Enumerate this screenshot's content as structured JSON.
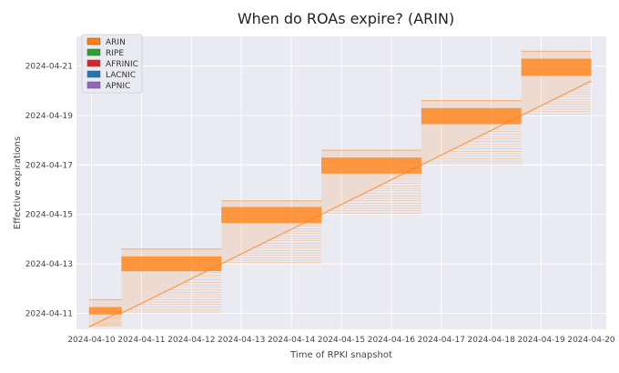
{
  "chart_data": {
    "type": "area",
    "title": "When do ROAs expire? (ARIN)",
    "xlabel": "Time of RPKI snapshot",
    "ylabel": "Effective expirations",
    "x_ticks": [
      "2024-04-10",
      "2024-04-11",
      "2024-04-12",
      "2024-04-13",
      "2024-04-14",
      "2024-04-15",
      "2024-04-16",
      "2024-04-17",
      "2024-04-18",
      "2024-04-19",
      "2024-04-20"
    ],
    "y_ticks": [
      "2024-04-11",
      "2024-04-13",
      "2024-04-15",
      "2024-04-17",
      "2024-04-19",
      "2024-04-21"
    ],
    "xlim": [
      -0.3,
      10.3
    ],
    "ylim": [
      10.35,
      22.2
    ],
    "grid": true,
    "legend_position": "top-left",
    "legend": [
      {
        "name": "ARIN",
        "color": "#ff7f0e"
      },
      {
        "name": "RIPE",
        "color": "#2ca02c"
      },
      {
        "name": "AFRINIC",
        "color": "#d62728"
      },
      {
        "name": "LACNIC",
        "color": "#1f77b4"
      },
      {
        "name": "APNIC",
        "color": "#9467bd"
      }
    ],
    "series": [
      {
        "name": "ARIN",
        "steps": [
          {
            "x_start": -0.05,
            "x_end": 0.6,
            "y_min": 10.45,
            "y_max": 11.55,
            "band_min": 10.95,
            "band_max": 11.25
          },
          {
            "x_start": 0.6,
            "x_end": 2.6,
            "y_min": 11.0,
            "y_max": 13.6,
            "band_min": 12.7,
            "band_max": 13.3
          },
          {
            "x_start": 2.6,
            "x_end": 4.6,
            "y_min": 13.0,
            "y_max": 15.55,
            "band_min": 14.65,
            "band_max": 15.3
          },
          {
            "x_start": 4.6,
            "x_end": 6.6,
            "y_min": 15.0,
            "y_max": 17.6,
            "band_min": 16.65,
            "band_max": 17.3
          },
          {
            "x_start": 6.6,
            "x_end": 8.6,
            "y_min": 17.0,
            "y_max": 19.6,
            "band_min": 18.65,
            "band_max": 19.3
          },
          {
            "x_start": 8.6,
            "x_end": 10.0,
            "y_min": 19.0,
            "y_max": 21.6,
            "band_min": 20.6,
            "band_max": 21.3
          }
        ]
      }
    ]
  }
}
